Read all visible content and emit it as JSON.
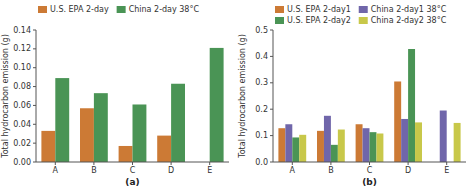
{
  "chart_data": [
    {
      "type": "bar",
      "categories": [
        "A",
        "B",
        "C",
        "D",
        "E"
      ],
      "series": [
        {
          "name": "U.S. EPA 2-day",
          "color": "#cc7a35",
          "values": [
            0.033,
            0.057,
            0.017,
            0.028,
            0.0
          ]
        },
        {
          "name": "China 2-day 38°C",
          "color": "#4a9455",
          "values": [
            0.089,
            0.073,
            0.061,
            0.083,
            0.121
          ]
        }
      ],
      "ylim": [
        0,
        0.14
      ],
      "yticks": [
        {
          "value": 0.0,
          "label": "0.00"
        },
        0.02,
        0.04,
        0.06,
        0.08,
        {
          "value": 0.1,
          "label": "0.10"
        },
        0.12,
        0.14
      ],
      "ylabel": "Total hydrocarbon emission (g)",
      "xlabel": "(a)",
      "legend": "upper left",
      "grid": false
    },
    {
      "type": "bar",
      "categories": [
        "A",
        "B",
        "C",
        "D",
        "E"
      ],
      "series": [
        {
          "name": "U.S. EPA 2-day1",
          "color": "#cc7a35",
          "values": [
            0.128,
            0.118,
            0.143,
            0.305,
            0.0
          ]
        },
        {
          "name": "China 2-day1 38°C",
          "color": "#7066aa",
          "values": [
            0.143,
            0.175,
            0.128,
            0.163,
            0.195
          ]
        },
        {
          "name": "U.S. EPA 2-day2",
          "color": "#4a9455",
          "values": [
            0.093,
            0.065,
            0.113,
            0.428,
            0.0
          ]
        },
        {
          "name": "China 2-day2 38°C",
          "color": "#c8c84a",
          "values": [
            0.103,
            0.123,
            0.108,
            0.15,
            0.148
          ]
        }
      ],
      "ylim": [
        0,
        0.5
      ],
      "yticks": [
        {
          "value": 0.0,
          "label": "0.0"
        },
        0.1,
        0.2,
        0.3,
        0.4,
        0.5
      ],
      "ylabel": "Total hydrocarbon emission (g)",
      "xlabel": "(b)",
      "legend": "upper left",
      "grid": false
    }
  ]
}
